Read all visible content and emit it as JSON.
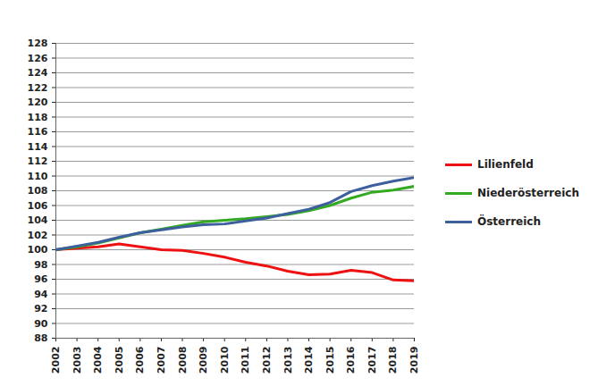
{
  "chart_data": {
    "type": "line",
    "x": [
      2002,
      2003,
      2004,
      2005,
      2006,
      2007,
      2008,
      2009,
      2010,
      2011,
      2012,
      2013,
      2014,
      2015,
      2016,
      2017,
      2018,
      2019
    ],
    "series": [
      {
        "name": "Lilienfeld",
        "color": "#ee1111",
        "values": [
          100,
          100.2,
          100.4,
          100.8,
          100.4,
          100.0,
          99.9,
          99.5,
          99.0,
          98.3,
          97.8,
          97.1,
          96.6,
          96.7,
          97.2,
          96.9,
          95.9,
          95.8
        ]
      },
      {
        "name": "Niederösterreich",
        "color": "#33aa22",
        "values": [
          100,
          100.4,
          100.9,
          101.6,
          102.3,
          102.8,
          103.3,
          103.8,
          104.0,
          104.2,
          104.5,
          104.8,
          105.3,
          106.0,
          107.0,
          107.8,
          108.1,
          108.6
        ]
      },
      {
        "name": "Österreich",
        "color": "#3d5f9e",
        "values": [
          100,
          100.5,
          101.0,
          101.7,
          102.3,
          102.7,
          103.1,
          103.4,
          103.5,
          103.9,
          104.3,
          104.9,
          105.5,
          106.4,
          107.9,
          108.7,
          109.3,
          109.8
        ]
      }
    ],
    "xlim": [
      2002,
      2019
    ],
    "xticks": [
      2002,
      2003,
      2004,
      2005,
      2006,
      2007,
      2008,
      2009,
      2010,
      2011,
      2012,
      2013,
      2014,
      2015,
      2016,
      2017,
      2018,
      2019
    ],
    "ylim": [
      88,
      128
    ],
    "yticks": [
      88,
      90,
      92,
      94,
      96,
      98,
      100,
      102,
      104,
      106,
      108,
      110,
      112,
      114,
      116,
      118,
      120,
      122,
      124,
      126,
      128
    ],
    "grid": true,
    "legend": "right"
  }
}
